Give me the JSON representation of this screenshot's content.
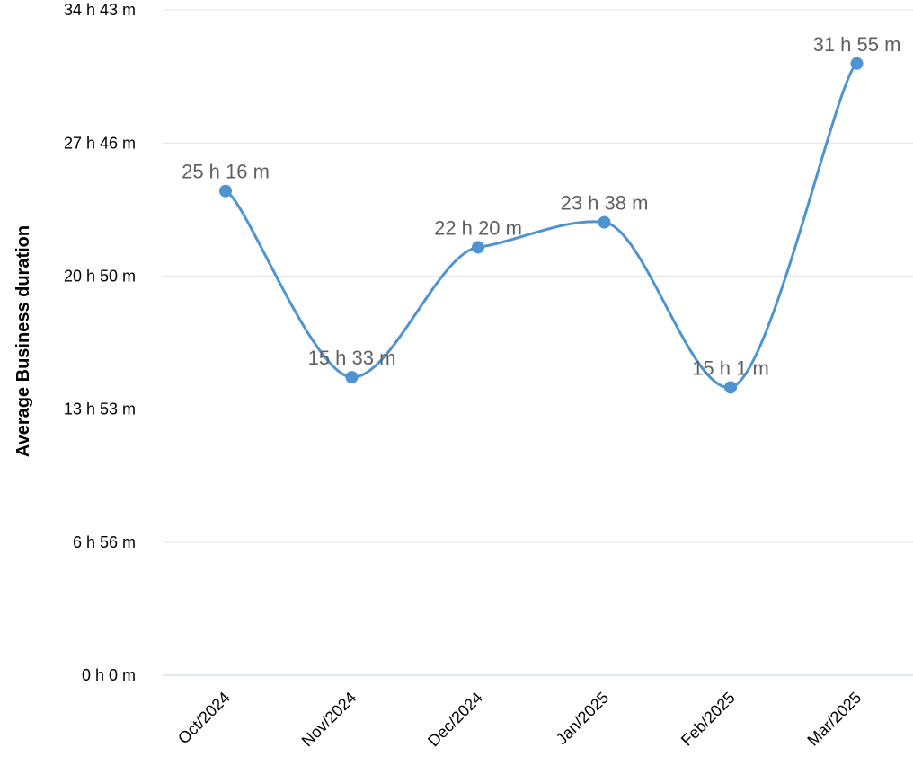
{
  "chart_data": {
    "type": "line",
    "title": "",
    "xlabel": "",
    "ylabel": "Average Business duration",
    "categories": [
      "Oct/2024",
      "Nov/2024",
      "Dec/2024",
      "Jan/2025",
      "Feb/2025",
      "Mar/2025"
    ],
    "series": [
      {
        "values_minutes": [
          1516,
          933,
          1340,
          1418,
          901,
          1915
        ],
        "labels": [
          "25 h 16 m",
          "15 h 33 m",
          "22 h 20 m",
          "23 h 38 m",
          "15 h 1 m",
          "31 h 55 m"
        ]
      }
    ],
    "y_ticks_minutes": [
      0,
      416,
      833,
      1250,
      1666,
      2083
    ],
    "y_tick_labels": [
      "0 h 0 m",
      "6 h 56 m",
      "13 h 53 m",
      "20 h 50 m",
      "27 h 46 m",
      "34 h 43 m"
    ],
    "ylim_minutes": [
      0,
      2083
    ],
    "grid": true,
    "legend": "none",
    "line_color": "#4d94d0",
    "smooth": true
  }
}
